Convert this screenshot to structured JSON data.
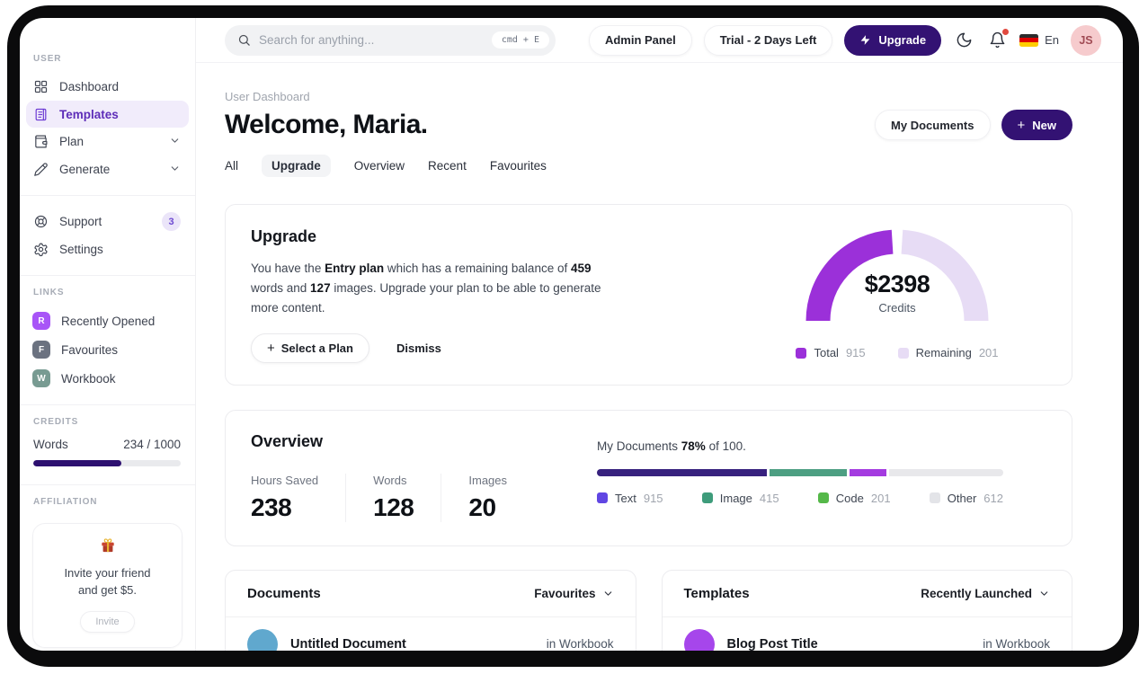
{
  "colors": {
    "accent_dark_purple": "#331273",
    "active_item_bg": "#F1ECFB",
    "active_item_text": "#5D2DB8",
    "notification_dot": "#E1493F",
    "credits_bar_fill": "#2D1070",
    "avatar_bg": "#F6CBCD"
  },
  "sidebar": {
    "user_label": "USER",
    "nav": [
      {
        "label": "Dashboard"
      },
      {
        "label": "Templates"
      },
      {
        "label": "Plan"
      },
      {
        "label": "Generate"
      }
    ],
    "secondary": [
      {
        "label": "Support",
        "badge": "3"
      },
      {
        "label": "Settings"
      }
    ],
    "links_label": "LINKS",
    "links": [
      {
        "initial": "R",
        "label": "Recently Opened",
        "color": "#A855F7"
      },
      {
        "initial": "F",
        "label": "Favourites",
        "color": "#6B7280"
      },
      {
        "initial": "W",
        "label": "Workbook",
        "color": "#789B92"
      }
    ],
    "credits_label": "CREDITS",
    "credits": {
      "label": "Words",
      "value": "234 / 1000",
      "fill_percent": 60
    },
    "affiliation_label": "AFFILIATION",
    "affiliation": {
      "line1": "Invite your friend",
      "line2": "and get $5.",
      "button": "Invite"
    }
  },
  "topbar": {
    "search_placeholder": "Search for anything...",
    "search_shortcut": "cmd + E",
    "admin_panel": "Admin Panel",
    "trial": "Trial - 2 Days Left",
    "upgrade": "Upgrade",
    "language": "En",
    "avatar_initials": "JS"
  },
  "header": {
    "breadcrumb": "User Dashboard",
    "title": "Welcome, Maria.",
    "my_documents": "My Documents",
    "new_button": "New",
    "tabs": [
      {
        "label": "All"
      },
      {
        "label": "Upgrade"
      },
      {
        "label": "Overview"
      },
      {
        "label": "Recent"
      },
      {
        "label": "Favourites"
      }
    ]
  },
  "upgrade_card": {
    "title": "Upgrade",
    "body": {
      "t1": "You have the ",
      "b1": "Entry plan",
      "t2": " which has a remaining balance of ",
      "b2": "459",
      "t3": " words and ",
      "b3": "127",
      "t4": " images. Upgrade your plan to be able to generate more content."
    },
    "select_plan": "Select a Plan",
    "dismiss": "Dismiss"
  },
  "chart_data": [
    {
      "type": "pie",
      "variant": "semicircle-gauge",
      "title": "$2398",
      "subtitle": "Credits",
      "series": [
        {
          "name": "Total",
          "value": 915,
          "color": "#9B30D9"
        },
        {
          "name": "Remaining",
          "value": 201,
          "color": "#E7DCF5"
        }
      ],
      "display_arcs": [
        {
          "start": 180,
          "end": 93.5
        },
        {
          "start": 86.5,
          "end": 0
        }
      ],
      "legend_position": "bottom"
    },
    {
      "type": "bar",
      "variant": "stacked-progress",
      "caption": {
        "t1": "My Documents ",
        "b": "78%",
        "t2": " of 100."
      },
      "series": [
        {
          "name": "Text",
          "value": 915,
          "color": "#37217E",
          "legend_color": "#6046E3"
        },
        {
          "name": "Image",
          "value": 415,
          "color": "#4D9F82",
          "legend_color": "#3E9C7B"
        },
        {
          "name": "Code",
          "value": 201,
          "color": "#A43BE0",
          "legend_color": "#55B849"
        },
        {
          "name": "Other",
          "value": 612,
          "color": "#E8E8EB",
          "legend_color": "#E3E4E8"
        }
      ]
    }
  ],
  "overview_card": {
    "title": "Overview",
    "stats": [
      {
        "label": "Hours Saved",
        "value": "238"
      },
      {
        "label": "Words",
        "value": "128"
      },
      {
        "label": "Images",
        "value": "20"
      }
    ]
  },
  "documents_card": {
    "title": "Documents",
    "filter": "Favourites",
    "row": {
      "title": "Untitled Document",
      "location": "in Workbook",
      "avatar_color": "#60A8CE"
    }
  },
  "templates_card": {
    "title": "Templates",
    "filter": "Recently Launched",
    "row": {
      "title": "Blog Post Title",
      "location": "in Workbook",
      "avatar_color": "#A646EB"
    }
  }
}
